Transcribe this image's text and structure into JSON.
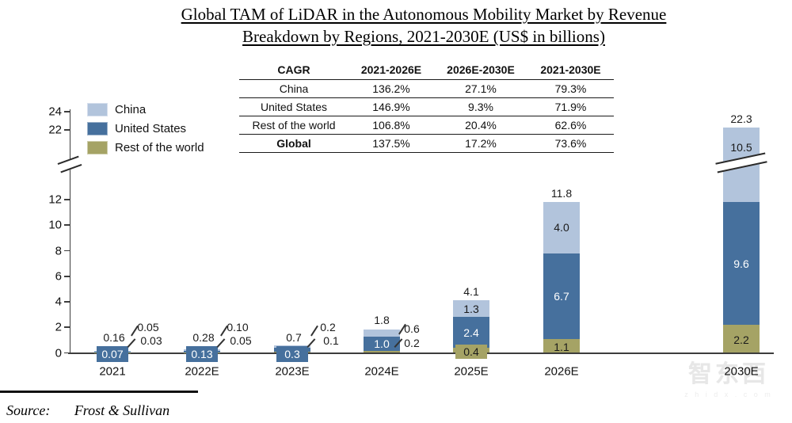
{
  "title": {
    "line1": "Global TAM of LiDAR in the Autonomous Mobility Market by Revenue",
    "line2": "Breakdown by Regions, 2021-2030E (US$ in billions)"
  },
  "cagr_table": {
    "headers": [
      "CAGR",
      "2021-2026E",
      "2026E-2030E",
      "2021-2030E"
    ],
    "rows": [
      {
        "label": "China",
        "values": [
          "136.2%",
          "27.1%",
          "79.3%"
        ]
      },
      {
        "label": "United States",
        "values": [
          "146.9%",
          "9.3%",
          "71.9%"
        ]
      },
      {
        "label": "Rest of the world",
        "values": [
          "106.8%",
          "20.4%",
          "62.6%"
        ]
      },
      {
        "label": "Global",
        "values": [
          "137.5%",
          "17.2%",
          "73.6%"
        ]
      }
    ]
  },
  "legend": {
    "items": [
      {
        "label": "China",
        "color": "#b2c4dc"
      },
      {
        "label": "United States",
        "color": "#46709d"
      },
      {
        "label": "Rest of the world",
        "color": "#a5a365"
      }
    ]
  },
  "chart_data": {
    "type": "bar",
    "subtype": "stacked",
    "title": "Global TAM of LiDAR in the Autonomous Mobility Market by Revenue Breakdown by Regions, 2021-2030E (US$ in billions)",
    "categories": [
      "2021",
      "2022E",
      "2023E",
      "2024E",
      "2025E",
      "2026E",
      "2030E"
    ],
    "series": [
      {
        "name": "Rest of the world",
        "color": "#a5a365",
        "values": [
          0.03,
          0.05,
          0.1,
          0.2,
          0.4,
          1.1,
          2.2
        ],
        "labels": [
          "0.03",
          "0.05",
          "0.1",
          "0.2",
          "0.4",
          "1.1",
          "2.2"
        ]
      },
      {
        "name": "United States",
        "color": "#46709d",
        "values": [
          0.07,
          0.13,
          0.3,
          1.0,
          2.4,
          6.7,
          9.6
        ],
        "labels": [
          "0.07",
          "0.13",
          "0.3",
          "1.0",
          "2.4",
          "6.7",
          "9.6"
        ]
      },
      {
        "name": "China",
        "color": "#b2c4dc",
        "values": [
          0.05,
          0.1,
          0.2,
          0.6,
          1.3,
          4.0,
          10.5
        ],
        "labels": [
          "0.05",
          "0.10",
          "0.2",
          "0.6",
          "1.3",
          "4.0",
          "10.5"
        ]
      }
    ],
    "totals": [
      "0.16",
      "0.28",
      "0.7",
      "1.8",
      "4.1",
      "11.8",
      "22.3"
    ],
    "y_ticks_lower": [
      0,
      2,
      4,
      6,
      8,
      10,
      12
    ],
    "y_ticks_upper": [
      22,
      24
    ],
    "axis_break": true,
    "ylim": [
      0,
      24
    ],
    "grid": false,
    "legend_position": "upper-left",
    "xlabel": "",
    "ylabel": ""
  },
  "source": {
    "prefix": "Source:",
    "text": "Frost & Sullivan"
  },
  "watermark": {
    "text": "智东西",
    "subtext": "z h i d x . c o m"
  }
}
